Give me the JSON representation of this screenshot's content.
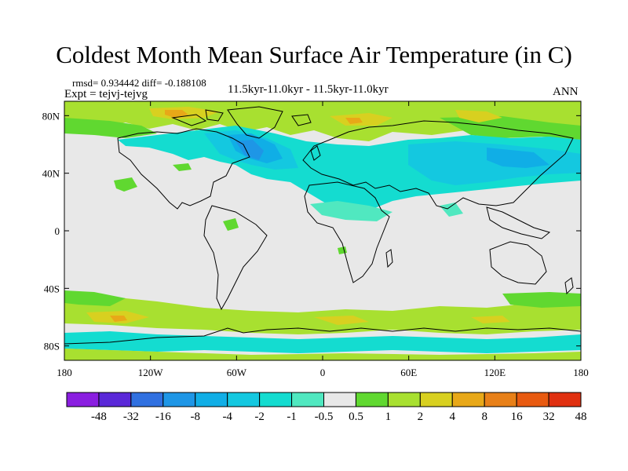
{
  "title": "Coldest Month Mean Surface Air Temperature (in C)",
  "stats": {
    "rmsd_label": "rmsd=",
    "rmsd": "0.934442",
    "diff_label": "diff=",
    "diff": "-0.188108"
  },
  "expt_text": "Expt = tejvj-tejvg",
  "subtitle": "11.5kyr-11.0kyr - 11.5kyr-11.0kyr",
  "season": "ANN",
  "map": {
    "lon_range": [
      -180,
      180
    ],
    "lat_range": [
      -90,
      90
    ],
    "lon_ticks": [
      {
        "value": -180,
        "label": "180"
      },
      {
        "value": -120,
        "label": "120W"
      },
      {
        "value": -60,
        "label": "60W"
      },
      {
        "value": 0,
        "label": "0"
      },
      {
        "value": 60,
        "label": "60E"
      },
      {
        "value": 120,
        "label": "120E"
      },
      {
        "value": 180,
        "label": "180"
      }
    ],
    "lat_ticks": [
      {
        "value": 80,
        "label": "80N"
      },
      {
        "value": 40,
        "label": "40N"
      },
      {
        "value": 0,
        "label": "0"
      },
      {
        "value": -40,
        "label": "40S"
      },
      {
        "value": -80,
        "label": "80S"
      }
    ],
    "background_color": "#e8e8e8",
    "coastline_color": "#000000"
  },
  "colorbar": {
    "colors": [
      "#8a1ee0",
      "#5a28d8",
      "#3070e0",
      "#1e96e6",
      "#10aee6",
      "#14c8e0",
      "#14dcd0",
      "#50e8c0",
      "#e8e8e8",
      "#60d830",
      "#a8e030",
      "#d8d020",
      "#e8a818",
      "#e88018",
      "#e85a10",
      "#e03010"
    ],
    "labels": [
      "-48",
      "-32",
      "-16",
      "-8",
      "-4",
      "-2",
      "-1",
      "-0.5",
      "0.5",
      "1",
      "2",
      "4",
      "8",
      "16",
      "32",
      "48"
    ]
  }
}
